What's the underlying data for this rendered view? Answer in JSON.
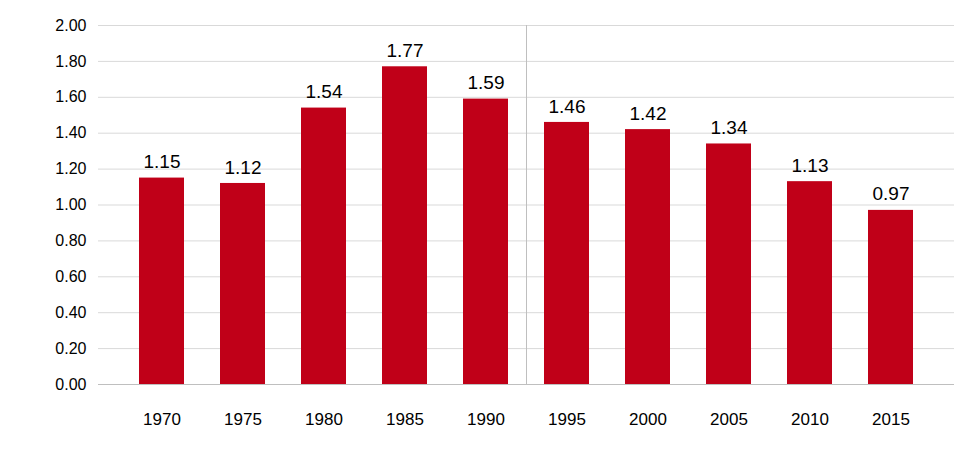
{
  "chart_data": {
    "type": "bar",
    "categories": [
      "1970",
      "1975",
      "1980",
      "1985",
      "1990",
      "1995",
      "2000",
      "2005",
      "2010",
      "2015"
    ],
    "values": [
      1.15,
      1.12,
      1.54,
      1.77,
      1.59,
      1.46,
      1.42,
      1.34,
      1.13,
      0.97
    ],
    "color": "#c00018",
    "ylim": [
      0,
      2
    ],
    "yticks": [
      {
        "value": 0,
        "label": "0.00"
      },
      {
        "value": 0.2,
        "label": "0.20"
      },
      {
        "value": 0.4,
        "label": "0.40"
      },
      {
        "value": 0.6,
        "label": "0.60"
      },
      {
        "value": 0.8,
        "label": "0.80"
      },
      {
        "value": 1,
        "label": "1.00"
      },
      {
        "value": 1.2,
        "label": "1.20"
      },
      {
        "value": 1.4,
        "label": "1.40"
      },
      {
        "value": 1.6,
        "label": "1.60"
      },
      {
        "value": 1.8,
        "label": "1.80"
      },
      {
        "value": 2,
        "label": "2.00"
      }
    ],
    "grid": true,
    "data_labels": true
  }
}
